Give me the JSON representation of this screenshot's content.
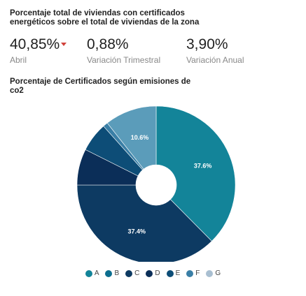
{
  "header": {
    "title": "Porcentaje total de viviendas con certificados energéticos sobre el total de viviendas de la zona"
  },
  "kpis": [
    {
      "value": "40,85%",
      "label": "Abril",
      "trend": "down",
      "trend_color": "#d0423b"
    },
    {
      "value": "0,88%",
      "label": "Variación Trimestral"
    },
    {
      "value": "3,90%",
      "label": "Variación Anual"
    }
  ],
  "chart_section": {
    "title": "Porcentaje de Certificados según emisiones de co2"
  },
  "chart_data": {
    "type": "pie",
    "style": "donut",
    "title": "Porcentaje de Certificados según emisiones de co2",
    "legend_position": "bottom",
    "categories": [
      "A",
      "B",
      "C",
      "D",
      "E",
      "F",
      "G"
    ],
    "values": [
      37.6,
      0,
      37.4,
      7.4,
      6.0,
      1.0,
      10.6
    ],
    "slice_labels": [
      "37.6%",
      "",
      "37.4%",
      "",
      "",
      "",
      "10.6%"
    ],
    "colors": [
      "#138499",
      "#0c6e8f",
      "#0d3a62",
      "#0b2e58",
      "#0d4d77",
      "#3a7fa6",
      "#5b9cba"
    ],
    "legend_colors": [
      "#138499",
      "#0c6e8f",
      "#0d3a62",
      "#0b2e58",
      "#0d4d77",
      "#3a7fa6",
      "#a9bfd1"
    ]
  }
}
